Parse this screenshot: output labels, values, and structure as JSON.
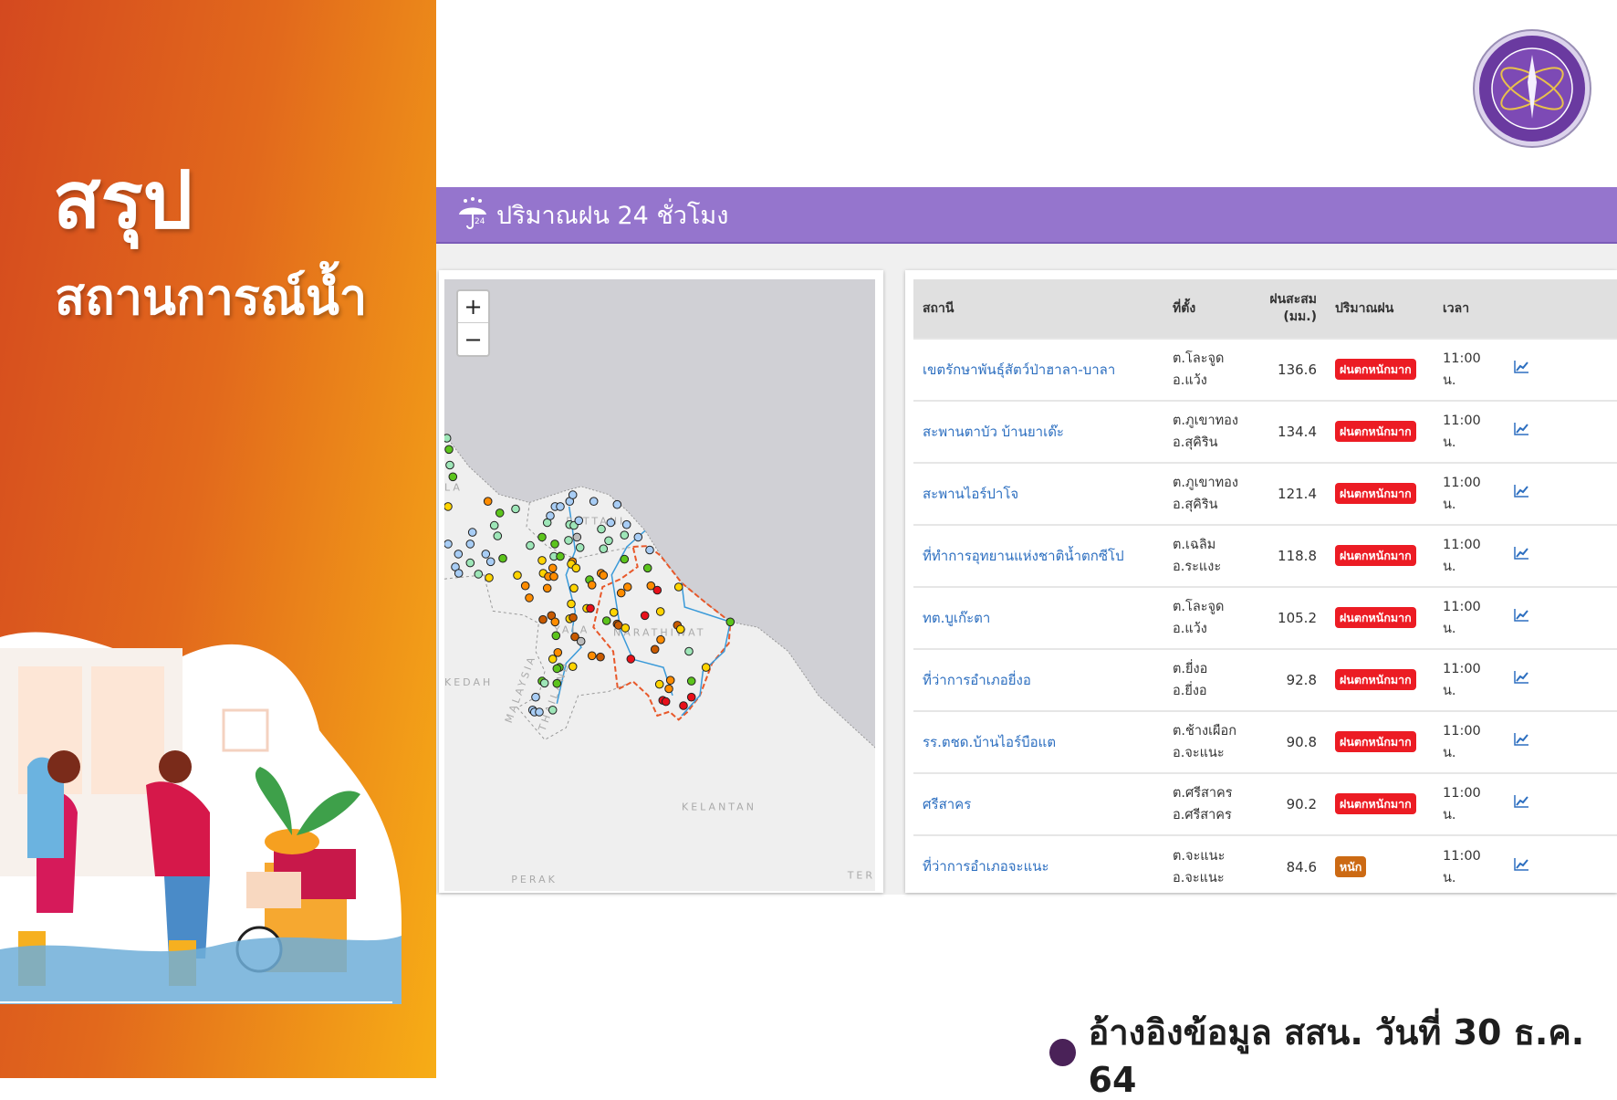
{
  "sidebar": {
    "title": "สรุป",
    "subtitle": "สถานการณ์น้ำ"
  },
  "header": {
    "title": "ปริมาณฝน 24 ชั่วโมง",
    "icon": "umbrella-24-icon",
    "icon_badge": "24",
    "color": "#9575cd"
  },
  "map": {
    "zoom_in": "+",
    "zoom_out": "−",
    "labels": [
      "PATTANI",
      "YALA",
      "NARATHIWAT",
      "KEDAH",
      "MALAYSIA",
      "THAILAND",
      "KELANTAN",
      "PERAK",
      "LA",
      "TER"
    ]
  },
  "table": {
    "headers": {
      "station": "สถานี",
      "location": "ที่ตั้ง",
      "rain_line1": "ฝนสะสม",
      "rain_line2": "(มม.)",
      "level": "ปริมาณฝน",
      "time": "เวลา"
    },
    "rows": [
      {
        "station": "เขตรักษาพันธุ์สัตว์ป่าฮาลา-บาลา",
        "tambon": "ต.โละจูด",
        "amphoe": "อ.แว้ง",
        "rain": "136.6",
        "level": "ฝนตกหนักมาก",
        "time": "11:00",
        "time_unit": "น."
      },
      {
        "station": "สะพานตาบัว บ้านยาเด๊ะ",
        "tambon": "ต.ภูเขาทอง",
        "amphoe": "อ.สุคิริน",
        "rain": "134.4",
        "level": "ฝนตกหนักมาก",
        "time": "11:00",
        "time_unit": "น."
      },
      {
        "station": "สะพานไอร์ปาโจ",
        "tambon": "ต.ภูเขาทอง",
        "amphoe": "อ.สุคิริน",
        "rain": "121.4",
        "level": "ฝนตกหนักมาก",
        "time": "11:00",
        "time_unit": "น."
      },
      {
        "station": "ที่ทำการอุทยานแห่งชาติน้ำตกซีโป",
        "tambon": "ต.เฉลิม",
        "amphoe": "อ.ระแงะ",
        "rain": "118.8",
        "level": "ฝนตกหนักมาก",
        "time": "11:00",
        "time_unit": "น."
      },
      {
        "station": "ทต.บูเก๊ะตา",
        "tambon": "ต.โละจูด",
        "amphoe": "อ.แว้ง",
        "rain": "105.2",
        "level": "ฝนตกหนักมาก",
        "time": "11:00",
        "time_unit": "น."
      },
      {
        "station": "ที่ว่าการอำเภอยี่งอ",
        "tambon": "ต.ยี่งอ",
        "amphoe": "อ.ยี่งอ",
        "rain": "92.8",
        "level": "ฝนตกหนักมาก",
        "time": "11:00",
        "time_unit": "น."
      },
      {
        "station": "รร.ตชด.บ้านไอร์บือแต",
        "tambon": "ต.ช้างเผือก",
        "amphoe": "อ.จะแนะ",
        "rain": "90.8",
        "level": "ฝนตกหนักมาก",
        "time": "11:00",
        "time_unit": "น."
      },
      {
        "station": "ศรีสาคร",
        "tambon": "ต.ศรีสาคร",
        "amphoe": "อ.ศรีสาคร",
        "rain": "90.2",
        "level": "ฝนตกหนักมาก",
        "time": "11:00",
        "time_unit": "น."
      },
      {
        "station": "ที่ว่าการอำเภอจะแนะ",
        "tambon": "ต.จะแนะ",
        "amphoe": "อ.จะแนะ",
        "rain": "84.6",
        "level": "หนัก",
        "time": "11:00",
        "time_unit": "น."
      }
    ],
    "level_colors": {
      "ฝนตกหนักมาก": "#ec1c24",
      "หนัก": "#cc6a14"
    }
  },
  "footer": {
    "text": "อ้างอิงข้อมูล สสน. วันที่ 30 ธ.ค. 64"
  }
}
